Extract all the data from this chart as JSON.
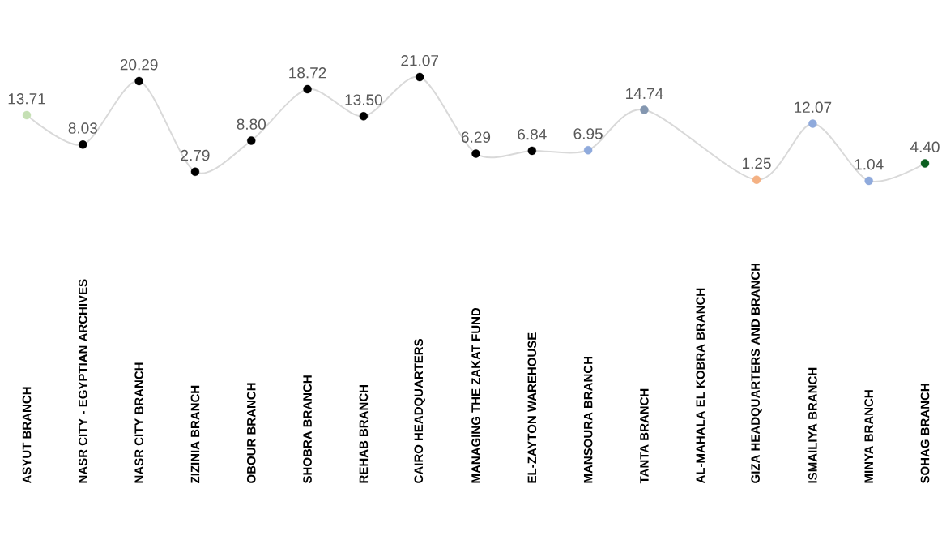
{
  "chart_data": {
    "type": "line",
    "categories": [
      "ASYUT BRANCH",
      "NASR CITY - EGYPTIAN ARCHIVES",
      "NASR CITY BRANCH",
      "ZIZINIA BRANCH",
      "OBOUR BRANCH",
      "SHOBRA BRANCH",
      "REHAB BRANCH",
      "CAIRO HEADQUARTERS",
      "MANAGING THE ZAKAT FUND",
      "EL-ZAYTON WAREHOUSE",
      "MANSOURA BRANCH",
      "TANTA BRANCH",
      "AL-MAHALA EL KOBRA BRANCH",
      "GIZA HEADQUARTERS AND BRANCH",
      "ISMAILIYA BRANCH",
      "MINYA BRANCH",
      "SOHAG BRANCH"
    ],
    "values": [
      13.71,
      8.03,
      20.29,
      2.79,
      8.8,
      18.72,
      13.5,
      21.07,
      6.29,
      6.84,
      6.95,
      14.74,
      null,
      1.25,
      12.07,
      1.04,
      4.4
    ],
    "value_labels": [
      "13.71",
      "8.03",
      "20.29",
      "2.79",
      "8.80",
      "18.72",
      "13.50",
      "21.07",
      "6.29",
      "6.84",
      "6.95",
      "14.74",
      null,
      "1.25",
      "12.07",
      "1.04",
      "4.40"
    ],
    "color": "#d9d9d9",
    "colors": [
      "#c5e0b4",
      "#000000",
      "#000000",
      "#000000",
      "#000000",
      "#000000",
      "#000000",
      "#000000",
      "#000000",
      "#000000",
      "#8faadc",
      "#8497b0",
      "#adb9ca",
      "#f4b183",
      "#8faadc",
      "#8faadc",
      "#0b5e1f"
    ],
    "marker": "circle",
    "line_style": "solid"
  }
}
